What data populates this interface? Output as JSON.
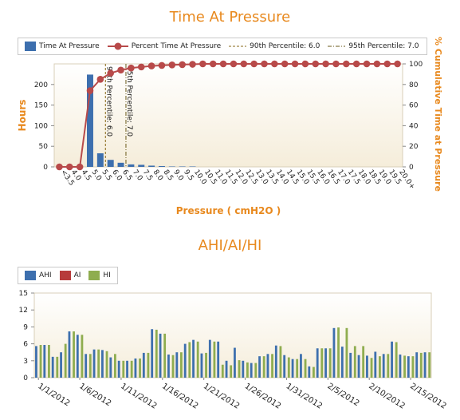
{
  "chart_data": [
    {
      "type": "bar+line",
      "title": "Time At Pressure",
      "xlabel": "Pressure ( cmH2O )",
      "ylabel": "Hours",
      "y2label": "% Cumulative Time at Pressure",
      "ylim": [
        0,
        250
      ],
      "y2lim": [
        0,
        100
      ],
      "yticks": [
        "0",
        "50",
        "100",
        "150",
        "200"
      ],
      "y2ticks": [
        "0",
        "20",
        "40",
        "60",
        "80",
        "100"
      ],
      "categories": [
        "<3.5",
        "4.0",
        "4.5",
        "5.0",
        "5.5",
        "6.0",
        "6.5",
        "7.0",
        "7.5",
        "8.0",
        "8.5",
        "9.0",
        "9.5",
        "10.0",
        "10.5",
        "11.0",
        "11.5",
        "12.0",
        "12.5",
        "13.0",
        "13.5",
        "14.0",
        "14.5",
        "15.0",
        "15.5",
        "16.0",
        "16.5",
        "17.0",
        "17.5",
        "18.0",
        "18.5",
        "19.0",
        "19.5",
        "20.0+"
      ],
      "series": [
        {
          "name": "Time At Pressure",
          "kind": "bar",
          "color": "#3d6fae",
          "values": [
            0,
            0,
            0,
            224,
            33,
            17,
            10,
            6,
            5,
            3,
            2,
            1,
            1,
            1,
            0,
            0,
            0,
            0,
            0,
            0,
            0,
            0,
            0,
            0,
            0,
            0,
            0,
            0,
            0,
            0,
            0,
            0,
            0,
            0
          ]
        },
        {
          "name": "Percent Time At Pressure",
          "kind": "line",
          "color": "#b84a4a",
          "values": [
            0,
            0,
            0,
            74,
            85,
            91,
            94,
            96,
            97,
            98,
            98.5,
            99,
            99.3,
            99.6,
            100,
            100,
            100,
            100,
            100,
            100,
            100,
            100,
            100,
            100,
            100,
            100,
            100,
            100,
            100,
            100,
            100,
            100,
            100,
            100
          ]
        }
      ],
      "percentile_lines": [
        {
          "name": "90th Percentile: 6.0",
          "label": "90th Percentile: 6.0",
          "category": "6.0",
          "color": "#8a6a1a"
        },
        {
          "name": "95th Percentile: 7.0",
          "label": "95th Percentile: 7.0",
          "category": "7.0",
          "color": "#6a5a1a"
        }
      ],
      "legend_position": "top"
    },
    {
      "type": "bar",
      "title": "AHI/AI/HI",
      "ylim": [
        0,
        15
      ],
      "yticks": [
        "0",
        "3",
        "6",
        "9",
        "12",
        "15"
      ],
      "categories": [
        "1/1/2012",
        "1/2/2012",
        "1/3/2012",
        "1/4/2012",
        "1/5/2012",
        "1/6/2012",
        "1/7/2012",
        "1/8/2012",
        "1/9/2012",
        "1/10/2012",
        "1/11/2012",
        "1/12/2012",
        "1/13/2012",
        "1/14/2012",
        "1/15/2012",
        "1/16/2012",
        "1/17/2012",
        "1/18/2012",
        "1/19/2012",
        "1/20/2012",
        "1/21/2012",
        "1/22/2012",
        "1/23/2012",
        "1/24/2012",
        "1/25/2012",
        "1/26/2012",
        "1/27/2012",
        "1/28/2012",
        "1/29/2012",
        "1/30/2012",
        "1/31/2012",
        "2/1/2012",
        "2/2/2012",
        "2/3/2012",
        "2/4/2012",
        "2/5/2012",
        "2/6/2012",
        "2/7/2012",
        "2/8/2012",
        "2/9/2012",
        "2/10/2012",
        "2/11/2012",
        "2/12/2012",
        "2/13/2012",
        "2/14/2012",
        "2/15/2012",
        "2/16/2012",
        "2/17/2012"
      ],
      "tick_labels": [
        "1/1/2012",
        "1/6/2012",
        "1/11/2012",
        "1/16/2012",
        "1/21/2012",
        "1/26/2012",
        "1/31/2012",
        "2/5/2012",
        "2/10/2012",
        "2/15/2012"
      ],
      "series": [
        {
          "name": "AHI",
          "color": "#3d6fae",
          "values": [
            5.6,
            5.8,
            3.7,
            4.5,
            8.2,
            7.6,
            4.2,
            5.0,
            4.9,
            3.6,
            3.0,
            3.0,
            3.4,
            4.4,
            8.6,
            7.8,
            4.1,
            4.5,
            6.0,
            6.7,
            4.3,
            6.7,
            6.4,
            3.0,
            5.3,
            3.0,
            2.6,
            3.8,
            4.2,
            5.7,
            4.0,
            3.3,
            4.2,
            2.0,
            5.2,
            5.2,
            8.8,
            5.5,
            4.4,
            4.0,
            3.9,
            4.6,
            4.2,
            6.4,
            4.1,
            3.8,
            4.5,
            4.5
          ]
        },
        {
          "name": "AI",
          "color": "#b73b3b",
          "values": [
            0,
            0,
            0,
            0,
            0,
            0,
            0,
            0,
            0,
            0,
            0,
            0,
            0,
            0,
            0,
            0,
            0,
            0,
            0,
            0,
            0,
            0,
            0,
            0,
            0,
            0,
            0,
            0,
            0,
            0,
            0,
            0,
            0,
            0,
            0,
            0,
            0,
            0,
            0,
            0,
            0,
            0,
            0,
            0,
            0,
            0,
            0,
            0
          ]
        },
        {
          "name": "HI",
          "color": "#8fad4f",
          "values": [
            5.8,
            5.8,
            3.7,
            6.0,
            8.2,
            7.6,
            4.2,
            5.0,
            4.7,
            4.2,
            3.0,
            3.0,
            3.4,
            4.4,
            8.5,
            7.8,
            4.0,
            4.5,
            6.3,
            6.4,
            4.4,
            6.4,
            2.3,
            2.2,
            3.1,
            2.7,
            2.6,
            3.8,
            4.2,
            5.6,
            3.6,
            3.3,
            3.3,
            1.9,
            5.2,
            5.2,
            8.9,
            8.8,
            5.6,
            5.6,
            3.5,
            3.8,
            4.2,
            6.3,
            3.9,
            3.8,
            4.4,
            4.5
          ]
        }
      ],
      "legend_position": "top-left"
    }
  ]
}
